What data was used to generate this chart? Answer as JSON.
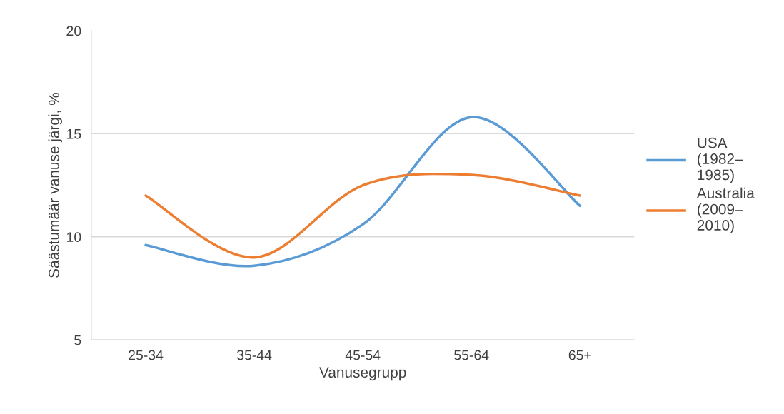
{
  "chart_data": {
    "type": "line",
    "xlabel": "Vanusegrupp",
    "ylabel": "Säästumäär vanuse järgi, %",
    "categories": [
      "25-34",
      "35-44",
      "45-54",
      "55-64",
      "65+"
    ],
    "series": [
      {
        "name": "USA (1982–1985)",
        "color": "#5b9bd5",
        "values": [
          9.6,
          8.6,
          10.6,
          15.8,
          11.5
        ]
      },
      {
        "name": "Australia (2009–2010)",
        "color": "#ed7d31",
        "values": [
          12.0,
          9.0,
          12.5,
          13.0,
          12.0
        ]
      }
    ],
    "ylim": [
      5,
      20
    ],
    "yticks": [
      5,
      10,
      15,
      20
    ],
    "grid": "y",
    "legend": "right",
    "marker": "none",
    "line_style": "solid"
  }
}
